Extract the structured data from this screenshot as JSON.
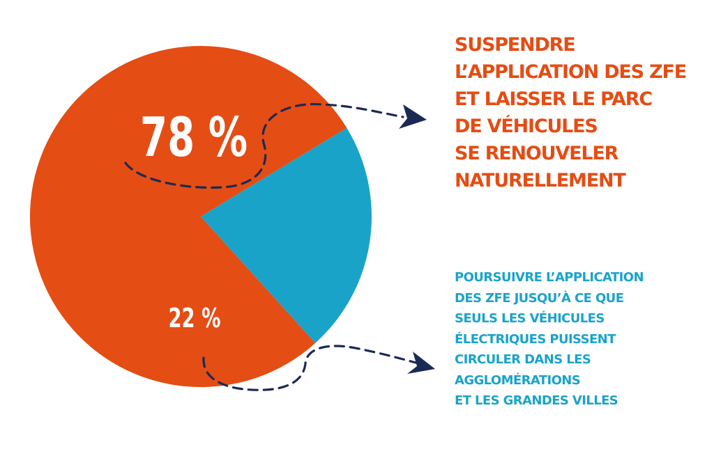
{
  "chart_data": {
    "type": "pie",
    "slices": [
      {
        "label": "78 %",
        "value": 78,
        "color": "#e44d14",
        "description_lines": [
          "SUSPENDRE",
          "L’APPLICATION DES ZFE",
          "ET LAISSER LE PARC",
          "DE VÉHICULES",
          "SE RENOUVELER",
          "NATURELLEMENT"
        ]
      },
      {
        "label": "22 %",
        "value": 22,
        "color": "#1aa3c9",
        "description_lines": [
          "POURSUIVRE L’APPLICATION",
          "DES ZFE JUSQU’À CE QUE",
          "SEULS LES VÉHICULES",
          "ÉLECTRIQUES PUISSENT",
          "CIRCULER DANS LES",
          "AGGLOMÉRATIONS",
          "ET LES GRANDES VILLES"
        ]
      }
    ],
    "arrow_color": "#1b2a55"
  }
}
